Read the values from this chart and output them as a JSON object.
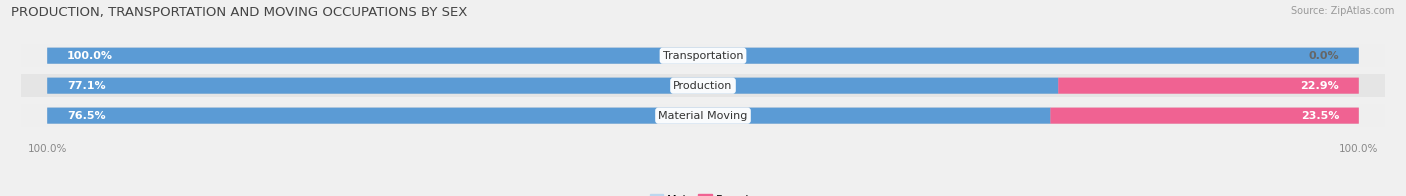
{
  "title": "PRODUCTION, TRANSPORTATION AND MOVING OCCUPATIONS BY SEX",
  "source": "Source: ZipAtlas.com",
  "categories": [
    "Transportation",
    "Production",
    "Material Moving"
  ],
  "male_values": [
    100.0,
    77.1,
    76.5
  ],
  "female_values": [
    0.0,
    22.9,
    23.5
  ],
  "male_color_dark": "#5b9bd5",
  "male_color_light": "#bdd7ee",
  "female_color_dark": "#f06292",
  "female_color_light": "#f8a8c0",
  "row_bg_even": "#efefef",
  "row_bg_odd": "#e5e5e5",
  "fig_bg": "#f0f0f0",
  "label_white": "#ffffff",
  "label_dark": "#666666",
  "tick_color": "#888888",
  "title_color": "#444444",
  "source_color": "#999999",
  "title_fontsize": 9.5,
  "label_fontsize": 8,
  "tick_fontsize": 7.5,
  "source_fontsize": 7,
  "figsize": [
    14.06,
    1.96
  ],
  "dpi": 100
}
